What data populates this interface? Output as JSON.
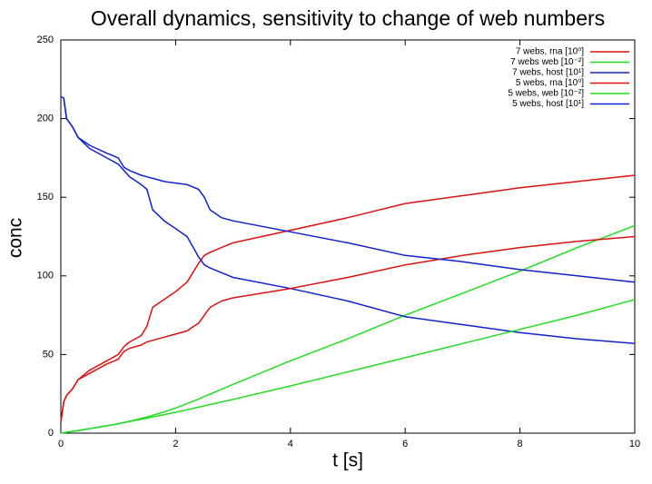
{
  "chart_data": {
    "type": "line",
    "title": "Overall dynamics, sensitivity to change of web numbers",
    "x_label": "t [s]",
    "y_label": "conc",
    "x": [
      0,
      0.05,
      0.1,
      0.2,
      0.3,
      0.5,
      0.8,
      1,
      1.1,
      1.2,
      1.4,
      1.5,
      1.6,
      1.8,
      2,
      2.2,
      2.4,
      2.5,
      2.6,
      2.8,
      3,
      4,
      5,
      6,
      7,
      8,
      9,
      10
    ],
    "series": [
      {
        "name": "7 webs, rna [10⁰]",
        "color": "#dd1111",
        "values": [
          7,
          20,
          24,
          28,
          34,
          40,
          46,
          50,
          55,
          58,
          62,
          68,
          80,
          85,
          90,
          96,
          108,
          113,
          115,
          118,
          121,
          129,
          137,
          146,
          151,
          156,
          160,
          164
        ]
      },
      {
        "name": "7 webs web [10⁻²]",
        "color": "#22dd22",
        "values": [
          0,
          0.3,
          0.6,
          1.1,
          1.7,
          2.9,
          4.7,
          6,
          6.8,
          7.6,
          9.4,
          10.3,
          11.3,
          13.5,
          16,
          18.8,
          21.7,
          23.3,
          24.8,
          27.9,
          31,
          46,
          60,
          75,
          89,
          103,
          118,
          132
        ]
      },
      {
        "name": "7 webs, host [10¹]",
        "color": "#1122cc",
        "values": [
          214,
          213,
          200,
          195,
          188,
          181,
          175,
          171,
          167,
          163,
          158,
          155,
          142,
          135,
          130,
          125,
          112,
          107,
          105,
          102,
          99,
          92,
          84,
          74,
          69,
          64,
          60,
          57
        ]
      },
      {
        "name": "5 webs, rna [10⁰]",
        "color": "#dd1111",
        "values": [
          7,
          20,
          24,
          28,
          34,
          38,
          44,
          47,
          52,
          54,
          56,
          58,
          59,
          61,
          63,
          65,
          70,
          75,
          80,
          84,
          86,
          92,
          99,
          107,
          113,
          118,
          122,
          125
        ]
      },
      {
        "name": "5 webs, web [10⁻²]",
        "color": "#22dd22",
        "values": [
          0,
          0.3,
          0.6,
          1.1,
          1.7,
          2.9,
          4.7,
          6,
          6.7,
          7.4,
          8.8,
          9.5,
          10.3,
          11.8,
          13.3,
          14.9,
          16.5,
          17.3,
          18.2,
          19.8,
          21.5,
          30,
          39,
          48,
          57,
          66,
          75,
          85
        ]
      },
      {
        "name": "5 webs, host [10¹]",
        "color": "#1122cc",
        "values": [
          214,
          213,
          200,
          195,
          188,
          183,
          178,
          175,
          169,
          167,
          164,
          163,
          162,
          160,
          159,
          158,
          155,
          150,
          142,
          137,
          135,
          128,
          121,
          113,
          109,
          104,
          100,
          96
        ]
      }
    ],
    "xlim": [
      0,
      10
    ],
    "xticks": [
      0,
      2,
      4,
      6,
      8,
      10
    ],
    "ylim": [
      0,
      250
    ],
    "yticks": [
      0,
      50,
      100,
      150,
      200,
      250
    ],
    "legend": "upper right"
  }
}
